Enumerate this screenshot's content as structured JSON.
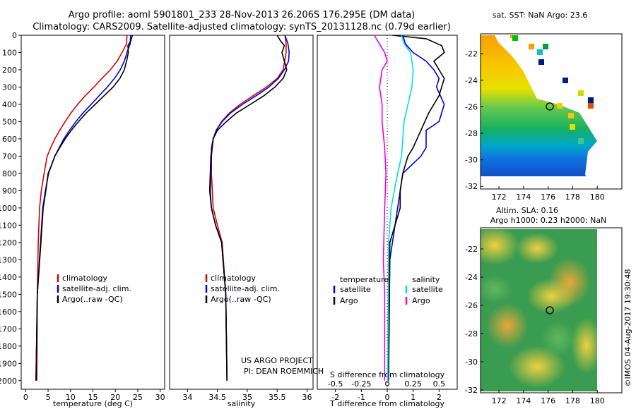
{
  "header": {
    "line1": "Argo profile: aoml 5901801_233 28-Nov-2013 26.206S 176.295E (DM data)",
    "line2": "Climatology: CARS2009. Satellite-adjusted climatology: synTS_20131128.nc (0.79d earlier)"
  },
  "colors": {
    "climatology": "#dd0000",
    "satellite": "#0000dd",
    "argo": "#000000",
    "satellite_salt": "#00e0e0",
    "argo_salt": "#ee00ee"
  },
  "chart_data": [
    {
      "type": "line",
      "xlabel": "temperature (deg C)",
      "xlim": [
        -1,
        31
      ],
      "ylim": [
        2050,
        0
      ],
      "xticks": [
        0,
        5,
        10,
        15,
        20,
        25,
        30
      ],
      "yticks": [
        0,
        100,
        200,
        300,
        400,
        500,
        600,
        700,
        800,
        900,
        1000,
        1100,
        1200,
        1300,
        1400,
        1500,
        1600,
        1700,
        1800,
        1900,
        2000
      ],
      "legend": [
        "climatology",
        "satellite-adj. clim.",
        "Argo(..raw -QC)"
      ],
      "series": [
        {
          "name": "climatology",
          "color": "#dd0000",
          "x": [
            22.6,
            22.5,
            21.5,
            20.4,
            18.9,
            17.0,
            15.2,
            13.3,
            11.6,
            10.1,
            8.8,
            7.6,
            6.5,
            5.6,
            4.8,
            4.1,
            3.5,
            3.1,
            2.8,
            2.6,
            2.5
          ],
          "y": [
            0,
            50,
            100,
            150,
            200,
            250,
            300,
            350,
            400,
            450,
            500,
            550,
            600,
            650,
            700,
            800,
            900,
            1000,
            1200,
            1500,
            2000
          ]
        },
        {
          "name": "satellite-adj. clim.",
          "color": "#0000dd",
          "x": [
            23.4,
            23.3,
            22.6,
            22.0,
            21.1,
            19.8,
            18.2,
            16.4,
            14.6,
            12.8,
            11.2,
            9.8,
            8.5,
            7.5,
            6.5,
            5.8,
            5.1,
            4.4,
            3.8,
            3.3,
            2.6,
            2.3
          ],
          "y": [
            0,
            50,
            100,
            150,
            200,
            250,
            300,
            350,
            400,
            450,
            500,
            550,
            600,
            650,
            700,
            750,
            800,
            900,
            1000,
            1200,
            1500,
            2000
          ]
        },
        {
          "name": "Argo(..raw -QC)",
          "color": "#000000",
          "x": [
            23.8,
            23.5,
            22.8,
            22.9,
            22.5,
            22.0,
            21.0,
            19.5,
            17.5,
            15.5,
            13.5,
            11.8,
            10.2,
            8.8,
            7.6,
            6.5,
            5.8,
            5.0,
            4.5,
            3.9,
            3.4,
            2.6,
            2.3
          ],
          "y": [
            0,
            30,
            60,
            100,
            150,
            200,
            250,
            300,
            350,
            400,
            450,
            500,
            550,
            600,
            650,
            700,
            750,
            800,
            900,
            1000,
            1200,
            1500,
            2000
          ]
        }
      ]
    },
    {
      "type": "line",
      "xlabel": "salinity",
      "xlim": [
        33.7,
        36.1
      ],
      "ylim": [
        2050,
        0
      ],
      "xticks": [
        34,
        34.5,
        35,
        35.5,
        36
      ],
      "legend": [
        "climatology",
        "satellite-adj. clim.",
        "Argo(..raw -QC)"
      ],
      "annotations": [
        "US ARGO PROJECT",
        "PI: DEAN ROEMMICH"
      ],
      "series": [
        {
          "name": "climatology",
          "color": "#dd0000",
          "x": [
            35.63,
            35.65,
            35.65,
            35.6,
            35.5,
            35.32,
            35.1,
            34.88,
            34.7,
            34.57,
            34.48,
            34.43,
            34.4,
            34.4,
            34.43,
            34.5,
            34.58,
            34.64,
            34.66
          ],
          "y": [
            0,
            50,
            100,
            200,
            250,
            300,
            350,
            400,
            450,
            500,
            550,
            600,
            650,
            800,
            1000,
            1100,
            1200,
            1500,
            2000
          ]
        },
        {
          "name": "satellite-adj. clim.",
          "color": "#0000dd",
          "x": [
            35.63,
            35.68,
            35.7,
            35.69,
            35.62,
            35.52,
            35.36,
            35.15,
            34.92,
            34.72,
            34.58,
            34.48,
            34.43,
            34.4,
            34.38,
            34.4,
            34.47,
            34.57,
            34.64,
            34.66
          ],
          "y": [
            0,
            50,
            100,
            150,
            200,
            250,
            300,
            350,
            400,
            450,
            500,
            550,
            600,
            700,
            900,
            1000,
            1100,
            1200,
            1500,
            2000
          ]
        },
        {
          "name": "Argo(..raw -QC)",
          "color": "#000000",
          "x": [
            35.5,
            35.55,
            35.62,
            35.58,
            35.62,
            35.66,
            35.6,
            35.46,
            35.28,
            35.05,
            34.82,
            34.65,
            34.5,
            34.43,
            34.39,
            34.37,
            34.4,
            34.47,
            34.57,
            34.64,
            34.66
          ],
          "y": [
            0,
            30,
            60,
            100,
            150,
            200,
            250,
            300,
            350,
            400,
            450,
            500,
            550,
            600,
            700,
            900,
            1000,
            1100,
            1200,
            1500,
            2000
          ]
        }
      ]
    },
    {
      "type": "line",
      "xlabel": "T difference from climatology",
      "xlabel_top": "S difference from climatology",
      "xlim": [
        -2.7,
        2.7
      ],
      "ylim": [
        2050,
        0
      ],
      "xticks": [
        -2,
        -1,
        0,
        1,
        2
      ],
      "xticks_top": [
        "-0.5",
        "-0.25",
        "0",
        "0.25",
        "0.5"
      ],
      "legend_headers": [
        "temperature",
        "salinity"
      ],
      "legend": [
        "satellite",
        "Argo",
        "satellite",
        "Argo"
      ],
      "series": [
        {
          "name": "temperature satellite",
          "color": "#0000dd",
          "x": [
            0.6,
            0.7,
            1.0,
            1.5,
            1.8,
            2.0,
            1.9,
            2.2,
            2.0,
            1.5,
            1.5,
            1.3,
            0.6,
            0.5,
            0.4,
            0.3,
            0.1,
            0.05
          ],
          "y": [
            0,
            50,
            100,
            150,
            200,
            250,
            300,
            400,
            500,
            550,
            650,
            700,
            800,
            900,
            1000,
            1100,
            1300,
            2000
          ]
        },
        {
          "name": "temperature Argo",
          "color": "#000000",
          "x": [
            0.2,
            1.5,
            2.1,
            2.2,
            1.8,
            2.0,
            2.2,
            2.0,
            1.6,
            1.3,
            1.0,
            0.8,
            0.6,
            0.5,
            0.5,
            0.3,
            0.1,
            0.05
          ],
          "y": [
            0,
            20,
            60,
            100,
            150,
            200,
            250,
            350,
            450,
            550,
            650,
            700,
            800,
            900,
            1000,
            1100,
            1200,
            2000
          ]
        },
        {
          "name": "salinity satellite",
          "color": "#00e0e0",
          "x": [
            0.55,
            0.65,
            0.9,
            1.0,
            0.95,
            0.8,
            0.65,
            0.6,
            0.55,
            0.4,
            0.15,
            0.05,
            0.02
          ],
          "y": [
            0,
            50,
            100,
            200,
            300,
            400,
            500,
            600,
            700,
            800,
            1000,
            1200,
            2000
          ]
        },
        {
          "name": "salinity Argo",
          "color": "#ee00ee",
          "x": [
            -0.5,
            -0.3,
            -0.1,
            0.0,
            -0.2,
            -0.3,
            -0.2,
            -0.2,
            -0.1,
            -0.05,
            -0.1,
            -0.15,
            -0.1,
            -0.1
          ],
          "y": [
            0,
            50,
            100,
            150,
            200,
            300,
            400,
            500,
            650,
            800,
            1000,
            1300,
            1500,
            2000
          ]
        }
      ]
    },
    {
      "type": "heatmap",
      "title": "sat. SST: NaN Argo: 23.6",
      "xticks": [
        172,
        174,
        176,
        178,
        180
      ],
      "yticks": [
        -22,
        -24,
        -26,
        -28,
        -30,
        -32
      ],
      "xlim": [
        170.5,
        182
      ],
      "ylim": [
        -32.2,
        -20.5
      ],
      "marker": {
        "lon": 176.3,
        "lat": -26.2
      }
    },
    {
      "type": "heatmap",
      "title": "Altim. SLA: 0.16",
      "subtitle": "Argo h1000: 0.23 h2000: NaN",
      "xticks": [
        172,
        174,
        176,
        178,
        180
      ],
      "yticks": [
        -22,
        -24,
        -26,
        -28,
        -30,
        -32
      ],
      "xlim": [
        170.5,
        182
      ],
      "ylim": [
        -32.2,
        -20.5
      ],
      "marker": {
        "lon": 176.3,
        "lat": -26.2
      }
    }
  ],
  "side_text": "©IMOS 04-Aug-2017 19:30:48"
}
